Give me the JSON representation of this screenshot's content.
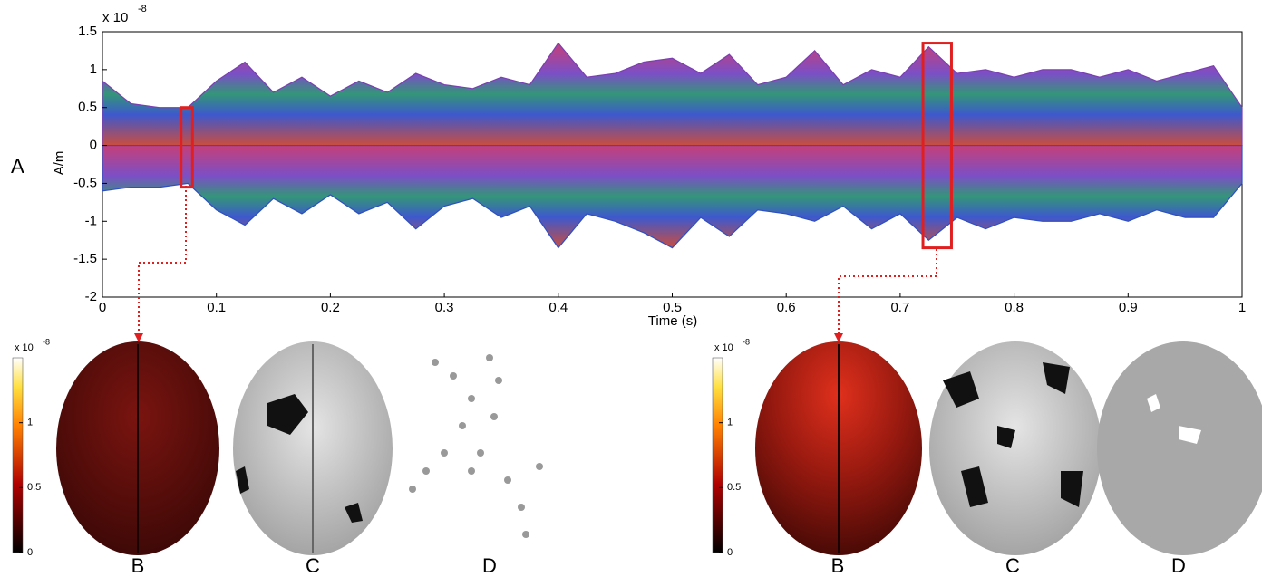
{
  "panel_label": "A",
  "chart_data": {
    "type": "area",
    "y_label": "A/m",
    "x_label": "Time (s)",
    "y_multiplier": "x 10",
    "y_multiplier_exp": "-8",
    "xlim": [
      0,
      1
    ],
    "xticks": [
      0,
      0.1,
      0.2,
      0.3,
      0.4,
      0.5,
      0.6,
      0.7,
      0.8,
      0.9,
      1
    ],
    "ylim": [
      -2,
      1.5
    ],
    "yticks": [
      -2,
      -1.5,
      -1,
      -0.5,
      0,
      0.5,
      1,
      1.5
    ],
    "x": [
      0,
      0.025,
      0.05,
      0.075,
      0.1,
      0.125,
      0.15,
      0.175,
      0.2,
      0.225,
      0.25,
      0.275,
      0.3,
      0.325,
      0.35,
      0.375,
      0.4,
      0.425,
      0.45,
      0.475,
      0.5,
      0.525,
      0.55,
      0.575,
      0.6,
      0.625,
      0.65,
      0.675,
      0.7,
      0.725,
      0.75,
      0.775,
      0.8,
      0.825,
      0.85,
      0.875,
      0.9,
      0.925,
      0.95,
      0.975,
      1
    ],
    "series": [
      {
        "color": "#7a3fb0",
        "values": [
          0.85,
          0.55,
          0.5,
          0.5,
          0.85,
          1.1,
          0.7,
          0.9,
          0.65,
          0.85,
          0.7,
          0.95,
          0.8,
          0.75,
          0.9,
          0.8,
          1.35,
          0.9,
          0.95,
          1.1,
          1.15,
          0.95,
          1.2,
          0.8,
          0.9,
          1.25,
          0.8,
          1.0,
          0.9,
          1.3,
          0.95,
          1.0,
          0.9,
          1.0,
          1.0,
          0.9,
          1.0,
          0.85,
          0.95,
          1.05,
          0.5
        ]
      },
      {
        "color": "#2f4fc0",
        "values": [
          -0.6,
          -0.55,
          -0.55,
          -0.5,
          -0.85,
          -1.05,
          -0.7,
          -0.9,
          -0.65,
          -0.9,
          -0.75,
          -1.1,
          -0.8,
          -0.7,
          -0.95,
          -0.8,
          -1.35,
          -0.9,
          -1.0,
          -1.15,
          -1.35,
          -0.95,
          -1.2,
          -0.85,
          -0.9,
          -1.0,
          -0.8,
          -1.1,
          -0.9,
          -1.25,
          -0.95,
          -1.1,
          -0.95,
          -1.0,
          -1.0,
          -0.9,
          -1.0,
          -0.85,
          -0.95,
          -0.95,
          -0.5
        ]
      }
    ],
    "highlights": [
      {
        "xlim": [
          0.069,
          0.079
        ],
        "ylim": [
          -0.55,
          0.5
        ]
      },
      {
        "xlim": [
          0.72,
          0.745
        ],
        "ylim": [
          -1.35,
          1.35
        ]
      }
    ]
  },
  "panels": [
    {
      "colorbar": {
        "multiplier": "x 10",
        "exp": "-8",
        "ticks": [
          0,
          0.5,
          1
        ],
        "lim": [
          0,
          1.5
        ]
      },
      "labels": [
        "B",
        "C",
        "D"
      ]
    },
    {
      "colorbar": {
        "multiplier": "x 10",
        "exp": "-8",
        "ticks": [
          0,
          0.5,
          1
        ],
        "lim": [
          0,
          1.5
        ]
      },
      "labels": [
        "B",
        "C",
        "D"
      ]
    }
  ]
}
